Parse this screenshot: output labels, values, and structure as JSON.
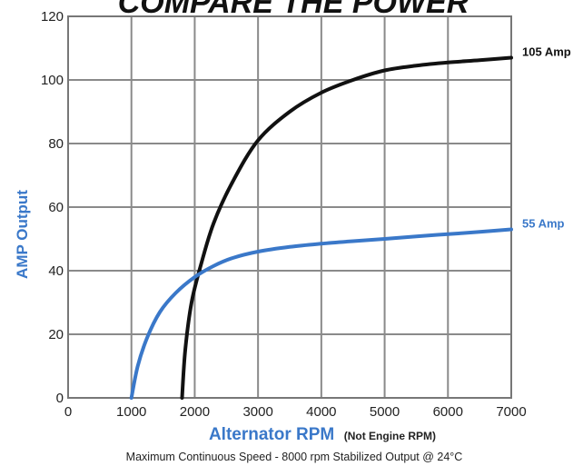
{
  "chart_data": {
    "type": "line",
    "title": "COMPARE THE POWER",
    "xlabel": "Alternator RPM",
    "xlabel_note": "(Not Engine RPM)",
    "ylabel": "AMP Output",
    "footnote": "Maximum Continuous Speed - 8000 rpm  Stabilized Output @ 24°C",
    "xlim": [
      0,
      7000
    ],
    "ylim": [
      0,
      120
    ],
    "xticks": [
      0,
      1000,
      2000,
      3000,
      4000,
      5000,
      6000,
      7000
    ],
    "yticks": [
      0,
      20,
      40,
      60,
      80,
      100,
      120
    ],
    "grid": true,
    "series": [
      {
        "name": "105 Amp",
        "color": "#111111",
        "x": [
          1800,
          1850,
          1950,
          2100,
          2300,
          2600,
          3000,
          3500,
          4000,
          4500,
          5000,
          5500,
          6000,
          6500,
          7000
        ],
        "y": [
          0,
          15,
          30,
          42,
          55,
          68,
          81,
          90,
          96,
          100,
          103,
          104.5,
          105.5,
          106.2,
          107
        ]
      },
      {
        "name": "55 Amp",
        "color": "#3a78c9",
        "x": [
          1000,
          1100,
          1250,
          1450,
          1700,
          2000,
          2300,
          2600,
          3000,
          3500,
          4000,
          4500,
          5000,
          5500,
          6000,
          6500,
          7000
        ],
        "y": [
          0,
          10,
          19,
          27,
          33,
          38,
          41.5,
          44,
          46,
          47.5,
          48.5,
          49.3,
          50,
          50.8,
          51.5,
          52.2,
          53
        ]
      }
    ]
  }
}
